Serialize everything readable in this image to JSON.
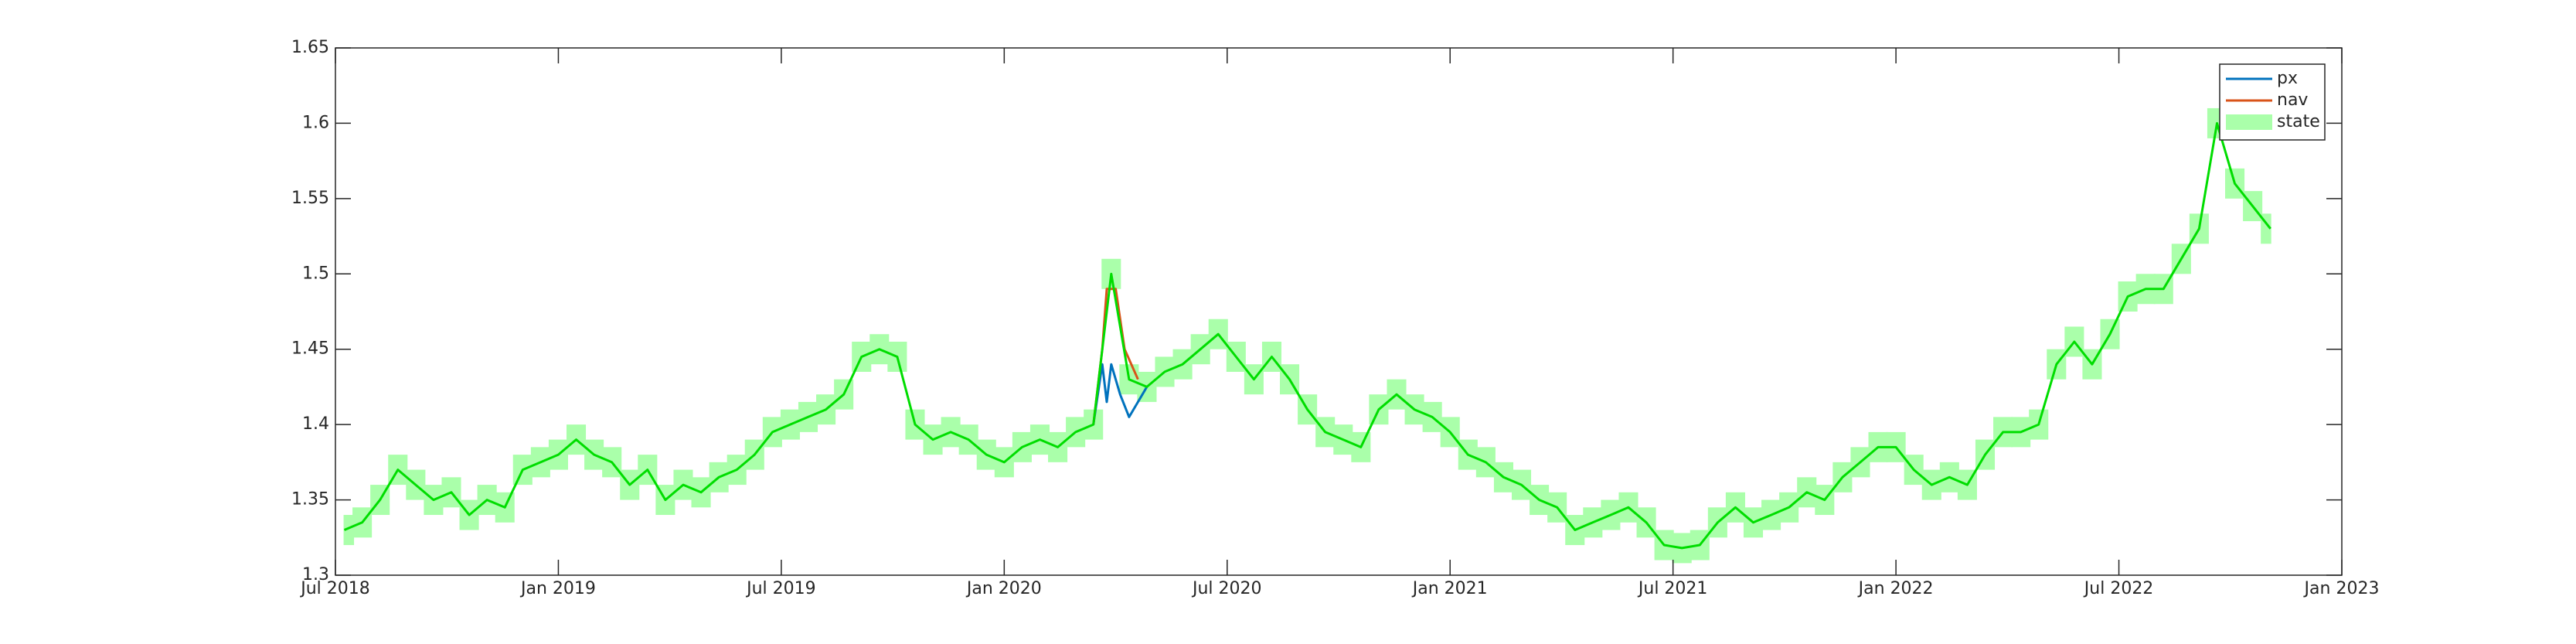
{
  "chart_data": {
    "type": "line",
    "xlim": [
      2018.5,
      2023.0
    ],
    "xticks": [
      {
        "value": 2018.5,
        "label": "Jul 2018"
      },
      {
        "value": 2019.0,
        "label": "Jan 2019"
      },
      {
        "value": 2019.5,
        "label": "Jul 2019"
      },
      {
        "value": 2020.0,
        "label": "Jan 2020"
      },
      {
        "value": 2020.5,
        "label": "Jul 2020"
      },
      {
        "value": 2021.0,
        "label": "Jan 2021"
      },
      {
        "value": 2021.5,
        "label": "Jul 2021"
      },
      {
        "value": 2022.0,
        "label": "Jan 2022"
      },
      {
        "value": 2022.5,
        "label": "Jul 2022"
      },
      {
        "value": 2023.0,
        "label": "Jan 2023"
      }
    ],
    "ylim": [
      1.3,
      1.65
    ],
    "yticks": [
      1.3,
      1.35,
      1.4,
      1.45,
      1.5,
      1.55,
      1.6,
      1.65
    ],
    "legend": "northeast",
    "series": [
      {
        "name": "px",
        "color": "#0072bd",
        "x": [
          2020.2,
          2020.22,
          2020.23,
          2020.24,
          2020.26,
          2020.28,
          2020.3,
          2020.32
        ],
        "values": [
          1.4,
          1.44,
          1.415,
          1.44,
          1.42,
          1.405,
          1.415,
          1.425
        ]
      },
      {
        "name": "nav",
        "color": "#d95319",
        "x": [
          2020.2,
          2020.22,
          2020.23,
          2020.25,
          2020.27,
          2020.3
        ],
        "values": [
          1.4,
          1.45,
          1.49,
          1.49,
          1.45,
          1.43
        ]
      },
      {
        "name": "state",
        "color": "#00dd00",
        "band_color": "#aaffaa",
        "error": 0.01,
        "x": [
          2018.52,
          2018.56,
          2018.6,
          2018.64,
          2018.68,
          2018.72,
          2018.76,
          2018.8,
          2018.84,
          2018.88,
          2018.92,
          2018.96,
          2019.0,
          2019.04,
          2019.08,
          2019.12,
          2019.16,
          2019.2,
          2019.24,
          2019.28,
          2019.32,
          2019.36,
          2019.4,
          2019.44,
          2019.48,
          2019.52,
          2019.56,
          2019.6,
          2019.64,
          2019.68,
          2019.72,
          2019.76,
          2019.8,
          2019.84,
          2019.88,
          2019.92,
          2019.96,
          2020.0,
          2020.04,
          2020.08,
          2020.12,
          2020.16,
          2020.2,
          2020.24,
          2020.28,
          2020.32,
          2020.36,
          2020.4,
          2020.44,
          2020.48,
          2020.52,
          2020.56,
          2020.6,
          2020.64,
          2020.68,
          2020.72,
          2020.76,
          2020.8,
          2020.84,
          2020.88,
          2020.92,
          2020.96,
          2021.0,
          2021.04,
          2021.08,
          2021.12,
          2021.16,
          2021.2,
          2021.24,
          2021.28,
          2021.32,
          2021.36,
          2021.4,
          2021.44,
          2021.48,
          2021.52,
          2021.56,
          2021.6,
          2021.64,
          2021.68,
          2021.72,
          2021.76,
          2021.8,
          2021.84,
          2021.88,
          2021.92,
          2021.96,
          2022.0,
          2022.04,
          2022.08,
          2022.12,
          2022.16,
          2022.2,
          2022.24,
          2022.28,
          2022.32,
          2022.36,
          2022.4,
          2022.44,
          2022.48,
          2022.52,
          2022.56,
          2022.6,
          2022.64,
          2022.68,
          2022.72,
          2022.76,
          2022.8,
          2022.84
        ],
        "values": [
          1.33,
          1.335,
          1.35,
          1.37,
          1.36,
          1.35,
          1.355,
          1.34,
          1.35,
          1.345,
          1.37,
          1.375,
          1.38,
          1.39,
          1.38,
          1.375,
          1.36,
          1.37,
          1.35,
          1.36,
          1.355,
          1.365,
          1.37,
          1.38,
          1.395,
          1.4,
          1.405,
          1.41,
          1.42,
          1.445,
          1.45,
          1.445,
          1.4,
          1.39,
          1.395,
          1.39,
          1.38,
          1.375,
          1.385,
          1.39,
          1.385,
          1.395,
          1.4,
          1.5,
          1.43,
          1.425,
          1.435,
          1.44,
          1.45,
          1.46,
          1.445,
          1.43,
          1.445,
          1.43,
          1.41,
          1.395,
          1.39,
          1.385,
          1.41,
          1.42,
          1.41,
          1.405,
          1.395,
          1.38,
          1.375,
          1.365,
          1.36,
          1.35,
          1.345,
          1.33,
          1.335,
          1.34,
          1.345,
          1.335,
          1.32,
          1.318,
          1.32,
          1.335,
          1.345,
          1.335,
          1.34,
          1.345,
          1.355,
          1.35,
          1.365,
          1.375,
          1.385,
          1.385,
          1.37,
          1.36,
          1.365,
          1.36,
          1.38,
          1.395,
          1.395,
          1.4,
          1.44,
          1.455,
          1.44,
          1.46,
          1.485,
          1.49,
          1.49,
          1.51,
          1.53,
          1.6,
          1.56,
          1.545,
          1.53
        ]
      }
    ]
  }
}
